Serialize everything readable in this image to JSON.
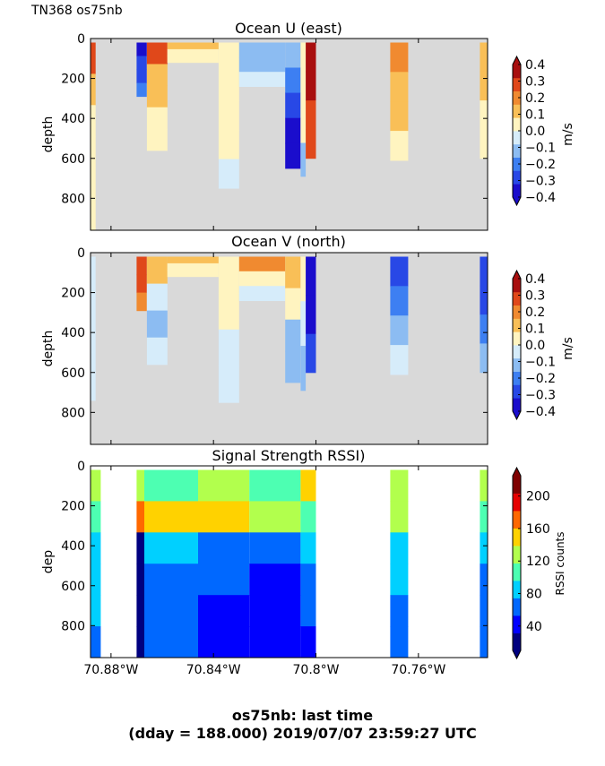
{
  "figure_label": "TN368 os75nb",
  "footer": {
    "line1": "os75nb: last time",
    "line2": "(dday = 188.000) 2019/07/07 23:59:27 UTC"
  },
  "colors": {
    "nodata": "#d9d9d9",
    "velocity_levels": [
      "#1a0dcc",
      "#2848e6",
      "#3d7ff2",
      "#8cbcf2",
      "#d6ecfa",
      "#fff4c0",
      "#f9bf57",
      "#f08a30",
      "#e0481a",
      "#a80f0f"
    ],
    "rssi_levels": [
      "#00007f",
      "#0000ff",
      "#0068ff",
      "#00d0ff",
      "#4dffb2",
      "#b2ff4d",
      "#ffd200",
      "#ff6800",
      "#e60000",
      "#7f0000"
    ]
  },
  "chart_data": [
    {
      "type": "heatmap",
      "title": "Ocean U (east)",
      "ylabel": "depth",
      "xlabel": "",
      "colorbar_label": "m/s",
      "colorbar_ticks": [
        "0.4",
        "0.3",
        "0.2",
        "0.1",
        "0.0",
        "−0.1",
        "−0.2",
        "−0.3",
        "−0.4"
      ],
      "x_ticks": [],
      "y_ticks": [
        "0",
        "200",
        "400",
        "600",
        "800"
      ],
      "xlim": [
        -70.888,
        -70.733
      ],
      "ylim": [
        960,
        0
      ],
      "clim": [
        -0.4,
        0.4
      ],
      "columns": [
        {
          "x": [
            -70.889,
            -70.886
          ],
          "depth": [
            20,
            960
          ],
          "profile": [
            0.25,
            0.1,
            0.05,
            0.05,
            0.05,
            0.0
          ]
        },
        {
          "x": [
            -70.87,
            -70.866
          ],
          "depth": [
            20,
            290
          ],
          "profile": [
            -0.35,
            -0.3,
            -0.25,
            -0.2
          ]
        },
        {
          "x": [
            -70.866,
            -70.858
          ],
          "depth": [
            20,
            560
          ],
          "profile": [
            0.3,
            0.15,
            0.1,
            0.05,
            0.05
          ]
        },
        {
          "x": [
            -70.858,
            -70.838
          ],
          "depth": [
            20,
            120
          ],
          "profile": [
            0.1,
            0.05,
            0.05
          ]
        },
        {
          "x": [
            -70.838,
            -70.83
          ],
          "depth": [
            20,
            750
          ],
          "profile": [
            0.05,
            0.05,
            0.0,
            0.0,
            -0.05
          ]
        },
        {
          "x": [
            -70.83,
            -70.812
          ],
          "depth": [
            20,
            240
          ],
          "profile": [
            -0.15,
            -0.1,
            -0.05
          ]
        },
        {
          "x": [
            -70.812,
            -70.806
          ],
          "depth": [
            20,
            650
          ],
          "profile": [
            -0.1,
            -0.2,
            -0.3,
            -0.35,
            -0.4
          ]
        },
        {
          "x": [
            -70.806,
            -70.804
          ],
          "depth": [
            20,
            690
          ],
          "profile": [
            0.0,
            0.05,
            0.0,
            -0.1
          ]
        },
        {
          "x": [
            -70.804,
            -70.8
          ],
          "depth": [
            20,
            600
          ],
          "profile": [
            0.4,
            0.35,
            0.3,
            0.3
          ]
        },
        {
          "x": [
            -70.771,
            -70.764
          ],
          "depth": [
            20,
            610
          ],
          "profile": [
            0.2,
            0.15,
            0.1,
            0.05
          ]
        },
        {
          "x": [
            -70.736,
            -70.733
          ],
          "depth": [
            20,
            600
          ],
          "profile": [
            0.15,
            0.1,
            0.05,
            0.05
          ]
        }
      ]
    },
    {
      "type": "heatmap",
      "title": "Ocean V (north)",
      "ylabel": "depth",
      "xlabel": "",
      "colorbar_label": "m/s",
      "colorbar_ticks": [
        "0.4",
        "0.3",
        "0.2",
        "0.1",
        "0.0",
        "−0.1",
        "−0.2",
        "−0.3",
        "−0.4"
      ],
      "x_ticks": [],
      "y_ticks": [
        "0",
        "200",
        "400",
        "600",
        "800"
      ],
      "xlim": [
        -70.888,
        -70.733
      ],
      "ylim": [
        960,
        0
      ],
      "clim": [
        -0.4,
        0.4
      ],
      "columns": [
        {
          "x": [
            -70.889,
            -70.886
          ],
          "depth": [
            20,
            740
          ],
          "profile": [
            -0.05,
            -0.05,
            -0.05,
            -0.05
          ]
        },
        {
          "x": [
            -70.87,
            -70.866
          ],
          "depth": [
            20,
            290
          ],
          "profile": [
            0.3,
            0.25,
            0.2
          ]
        },
        {
          "x": [
            -70.866,
            -70.858
          ],
          "depth": [
            20,
            560
          ],
          "profile": [
            0.1,
            -0.05,
            -0.1,
            -0.05
          ]
        },
        {
          "x": [
            -70.858,
            -70.838
          ],
          "depth": [
            20,
            120
          ],
          "profile": [
            0.15,
            0.05,
            0.0
          ]
        },
        {
          "x": [
            -70.838,
            -70.83
          ],
          "depth": [
            20,
            750
          ],
          "profile": [
            0.05,
            0.0,
            -0.05,
            -0.05
          ]
        },
        {
          "x": [
            -70.83,
            -70.812
          ],
          "depth": [
            20,
            240
          ],
          "profile": [
            0.2,
            0.05,
            -0.05
          ]
        },
        {
          "x": [
            -70.812,
            -70.806
          ],
          "depth": [
            20,
            650
          ],
          "profile": [
            0.1,
            0.0,
            -0.1,
            -0.15
          ]
        },
        {
          "x": [
            -70.806,
            -70.804
          ],
          "depth": [
            20,
            690
          ],
          "profile": [
            0.0,
            -0.05,
            -0.1
          ]
        },
        {
          "x": [
            -70.804,
            -70.8
          ],
          "depth": [
            20,
            600
          ],
          "profile": [
            -0.4,
            -0.35,
            -0.3
          ]
        },
        {
          "x": [
            -70.771,
            -70.764
          ],
          "depth": [
            20,
            610
          ],
          "profile": [
            -0.25,
            -0.2,
            -0.1,
            -0.05
          ]
        },
        {
          "x": [
            -70.736,
            -70.733
          ],
          "depth": [
            20,
            600
          ],
          "profile": [
            -0.25,
            -0.3,
            -0.2,
            -0.1
          ]
        }
      ]
    },
    {
      "type": "heatmap",
      "title": "Signal Strength RSSI)",
      "ylabel": "dep",
      "xlabel": "",
      "colorbar_label": "RSSI counts",
      "colorbar_ticks": [
        "200",
        "160",
        "120",
        "80",
        "40"
      ],
      "colorbar_tick_values": [
        200,
        160,
        120,
        80,
        40
      ],
      "x_ticks": [
        "70.88°W",
        "70.84°W",
        "70.8°W",
        "70.76°W"
      ],
      "x_tick_values": [
        -70.88,
        -70.84,
        -70.8,
        -70.76
      ],
      "y_ticks": [
        "0",
        "200",
        "400",
        "600",
        "800"
      ],
      "xlim": [
        -70.888,
        -70.733
      ],
      "ylim": [
        960,
        0
      ],
      "clim": [
        10,
        225
      ],
      "columns": [
        {
          "x": [
            -70.889,
            -70.884
          ],
          "depth": [
            20,
            960
          ],
          "profile": [
            120,
            110,
            95,
            85,
            75,
            70
          ]
        },
        {
          "x": [
            -70.87,
            -70.867
          ],
          "depth": [
            20,
            960
          ],
          "profile": [
            130,
            180,
            15,
            15,
            15,
            15
          ]
        },
        {
          "x": [
            -70.867,
            -70.846
          ],
          "depth": [
            20,
            960
          ],
          "profile": [
            110,
            150,
            90,
            70,
            60,
            55
          ]
        },
        {
          "x": [
            -70.846,
            -70.826
          ],
          "depth": [
            20,
            960
          ],
          "profile": [
            120,
            140,
            70,
            55,
            50,
            45
          ]
        },
        {
          "x": [
            -70.826,
            -70.806
          ],
          "depth": [
            20,
            960
          ],
          "profile": [
            110,
            130,
            60,
            45,
            40,
            35
          ]
        },
        {
          "x": [
            -70.806,
            -70.8
          ],
          "depth": [
            20,
            960
          ],
          "profile": [
            150,
            100,
            80,
            65,
            55,
            50
          ]
        },
        {
          "x": [
            -70.771,
            -70.764
          ],
          "depth": [
            20,
            960
          ],
          "profile": [
            130,
            120,
            95,
            80,
            70,
            60
          ]
        },
        {
          "x": [
            -70.736,
            -70.733
          ],
          "depth": [
            20,
            960
          ],
          "profile": [
            120,
            100,
            80,
            70,
            60,
            55
          ]
        }
      ]
    }
  ]
}
